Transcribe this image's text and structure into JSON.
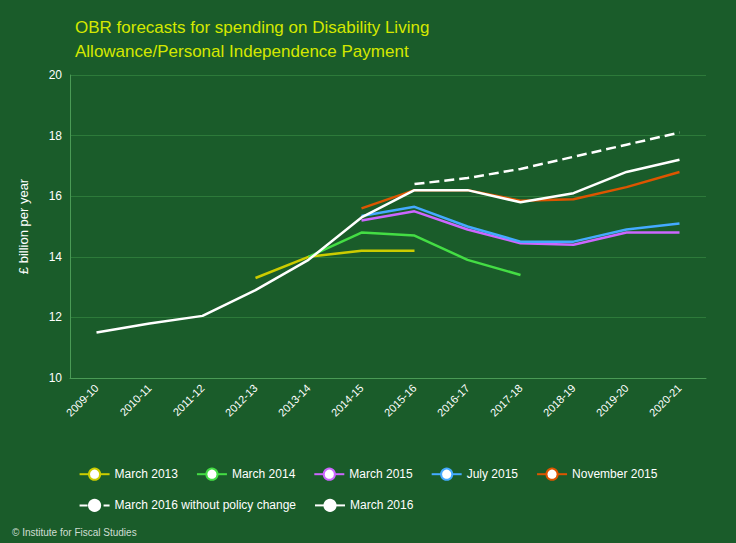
{
  "chart_data": {
    "type": "line",
    "title": "OBR forecasts for spending on Disability Living\nAllowance/Personal Independence Payment",
    "y_label": "£ billion per year",
    "categories": [
      "2009-10",
      "2010-11",
      "2011-12",
      "2012-13",
      "2013-14",
      "2014-15",
      "2015-16",
      "2016-17",
      "2017-18",
      "2018-19",
      "2019-20",
      "2020-21"
    ],
    "series": [
      {
        "name": "March 2013",
        "color": "#cccc00",
        "values": [
          null,
          null,
          null,
          13.3,
          14.0,
          14.2,
          14.2,
          null,
          null,
          null,
          null,
          null
        ]
      },
      {
        "name": "March 2014",
        "color": "#44dd44",
        "values": [
          null,
          null,
          null,
          null,
          14.0,
          14.8,
          14.7,
          13.9,
          13.4,
          null,
          null,
          null
        ]
      },
      {
        "name": "March 2015",
        "color": "#cc66ff",
        "values": [
          null,
          null,
          null,
          null,
          null,
          15.2,
          15.5,
          14.9,
          14.45,
          14.4,
          14.8,
          14.8
        ]
      },
      {
        "name": "July 2015",
        "color": "#44aaff",
        "values": [
          null,
          null,
          null,
          null,
          null,
          15.35,
          15.65,
          15.0,
          14.5,
          14.5,
          14.9,
          15.1
        ]
      },
      {
        "name": "November 2015",
        "color": "#dd5500",
        "values": [
          null,
          null,
          null,
          null,
          null,
          15.6,
          16.2,
          16.2,
          15.85,
          15.9,
          16.3,
          16.8
        ]
      },
      {
        "name": "March 2016 without policy change",
        "color": "white",
        "line_style": "dashed",
        "values": [
          null,
          null,
          null,
          null,
          null,
          null,
          16.4,
          16.6,
          16.9,
          17.3,
          17.7,
          18.1
        ]
      },
      {
        "name": "March 2016",
        "color": "white",
        "values": [
          11.5,
          11.8,
          12.05,
          12.9,
          13.9,
          15.3,
          16.2,
          16.2,
          15.8,
          16.1,
          16.8,
          17.2
        ]
      }
    ],
    "ylim": [
      10,
      20
    ],
    "yticks": [
      10,
      12,
      14,
      16,
      18,
      20
    ],
    "grid": true,
    "legend": "bottom",
    "annotations": [
      "© Institute for Fiscal Studies"
    ]
  }
}
